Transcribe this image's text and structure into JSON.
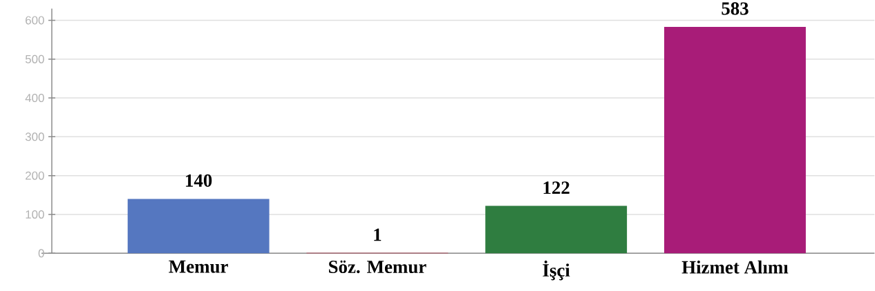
{
  "chart_data": {
    "type": "bar",
    "categories": [
      "Memur",
      "Söz. Memur",
      "İşçi",
      "Hizmet Alımı"
    ],
    "values": [
      140,
      1,
      122,
      583
    ],
    "colors": [
      "#5577c0",
      "#c8102e",
      "#2f7d40",
      "#a81c78"
    ],
    "ylim": [
      0,
      630
    ],
    "yticks": [
      0,
      100,
      200,
      300,
      400,
      500,
      600
    ],
    "grid": "y",
    "data_labels": true
  }
}
